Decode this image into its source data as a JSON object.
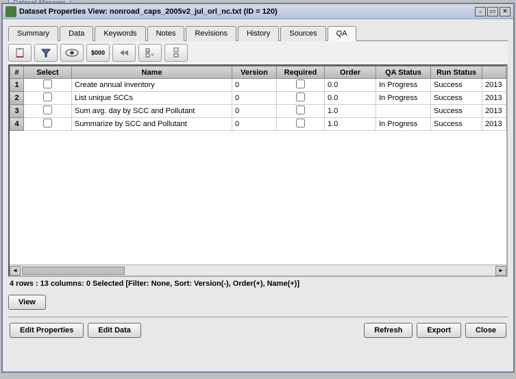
{
  "outerTab": "Dataset Manager",
  "window": {
    "title": "Dataset Properties View: nonroad_caps_2005v2_jul_orl_nc.txt (ID = 120)"
  },
  "tabs": [
    {
      "label": "Summary"
    },
    {
      "label": "Data"
    },
    {
      "label": "Keywords"
    },
    {
      "label": "Notes"
    },
    {
      "label": "Revisions"
    },
    {
      "label": "History"
    },
    {
      "label": "Sources"
    },
    {
      "label": "QA",
      "active": true
    }
  ],
  "toolbar": {
    "select_all": "sel",
    "filter": "flt",
    "view": "eye",
    "format": "$000",
    "first": "≪",
    "reset": "rst",
    "sort": "srt"
  },
  "columns": [
    "#",
    "Select",
    "Name",
    "Version",
    "Required",
    "Order",
    "QA Status",
    "Run Status",
    ""
  ],
  "rows": [
    {
      "num": "1",
      "name": "Create annual inventory",
      "version": "0",
      "order": "0.0",
      "qa": "In Progress",
      "run": "Success",
      "extra": "2013"
    },
    {
      "num": "2",
      "name": "List unique SCCs",
      "version": "0",
      "order": "0.0",
      "qa": "In Progress",
      "run": "Success",
      "extra": "2013"
    },
    {
      "num": "3",
      "name": "Sum avg. day by SCC and Pollutant",
      "version": "0",
      "order": "1.0",
      "qa": "",
      "run": "Success",
      "extra": "2013"
    },
    {
      "num": "4",
      "name": "Summarize by SCC and Pollutant",
      "version": "0",
      "order": "1.0",
      "qa": "In Progress",
      "run": "Success",
      "extra": "2013"
    }
  ],
  "status": "4 rows : 13 columns: 0 Selected [Filter: None, Sort: Version(-), Order(+), Name(+)]",
  "buttons": {
    "view": "View",
    "editProps": "Edit Properties",
    "editData": "Edit Data",
    "refresh": "Refresh",
    "export": "Export",
    "close": "Close"
  }
}
